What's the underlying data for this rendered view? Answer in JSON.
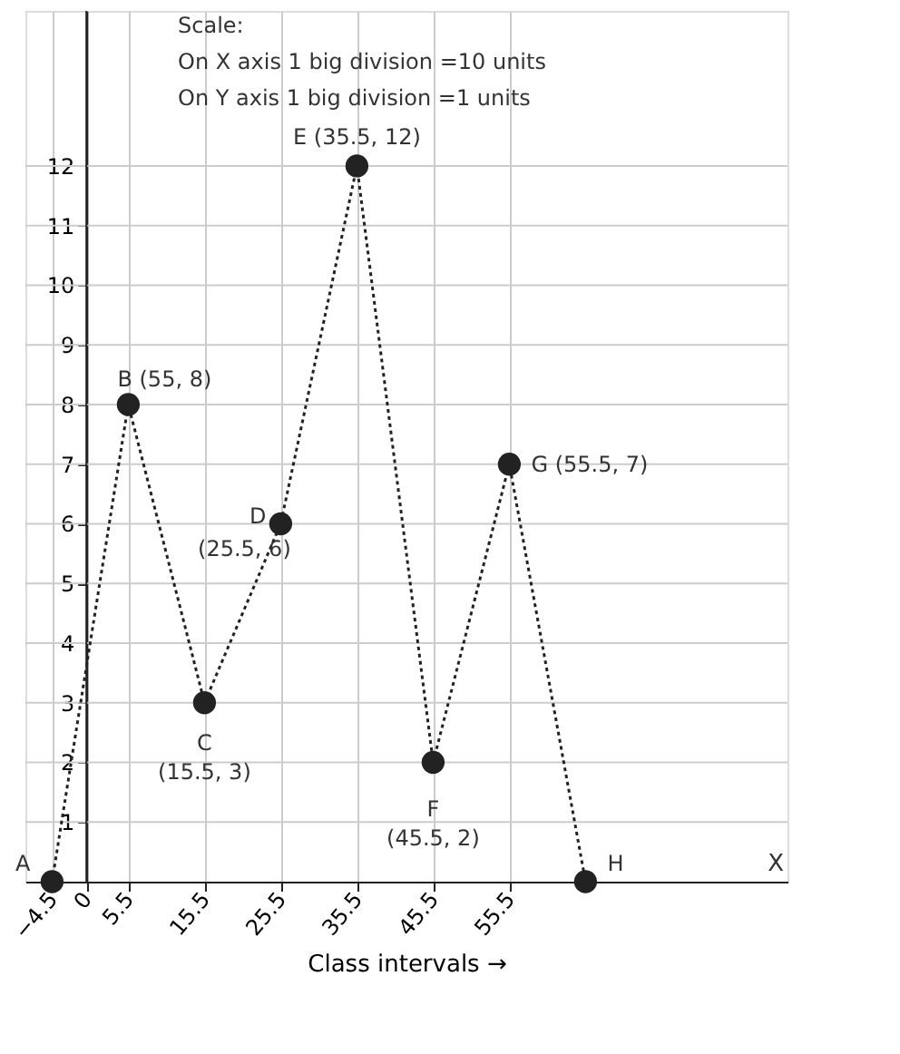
{
  "chart_data": {
    "type": "line",
    "xlabel": "Class intervals →",
    "x": [
      -4.5,
      5.5,
      15.5,
      25.5,
      35.5,
      45.5,
      55.5,
      65.5
    ],
    "series": [
      {
        "color": "#222222",
        "values": [
          0,
          8,
          3,
          6,
          12,
          2,
          7,
          0
        ]
      }
    ],
    "xlim": [
      -8,
      92
    ],
    "ylim": [
      0,
      14.6
    ],
    "xticks": [
      -4.5,
      0,
      5.5,
      15.5,
      25.5,
      35.5,
      45.5,
      55.5
    ],
    "yticks": [
      1,
      2,
      3,
      4,
      5,
      6,
      7,
      8,
      9,
      10,
      11,
      12
    ],
    "grid": true,
    "marker": "circle",
    "line_style": "dotted",
    "annotations": [
      "Scale:",
      "On X axis 1 big division =10 units",
      "On Y axis 1 big division =1 units",
      "X",
      {
        "text": "A",
        "x": -4.5,
        "y": 0
      },
      {
        "text": "B (55, 8)",
        "x": 5.5,
        "y": 8
      },
      {
        "text": "C",
        "x": 15.5,
        "y": 3
      },
      {
        "text": "(15.5, 3)",
        "x": 15.5,
        "y": 3
      },
      {
        "text": "D",
        "x": 25.5,
        "y": 6
      },
      {
        "text": "(25.5, 6)",
        "x": 25.5,
        "y": 6
      },
      {
        "text": "E (35.5, 12)",
        "x": 35.5,
        "y": 12
      },
      {
        "text": "F",
        "x": 45.5,
        "y": 2
      },
      {
        "text": "(45.5, 2)",
        "x": 45.5,
        "y": 2
      },
      {
        "text": "G (55.5, 7)",
        "x": 55.5,
        "y": 7
      },
      {
        "text": "H",
        "x": 65.5,
        "y": 0
      }
    ]
  }
}
